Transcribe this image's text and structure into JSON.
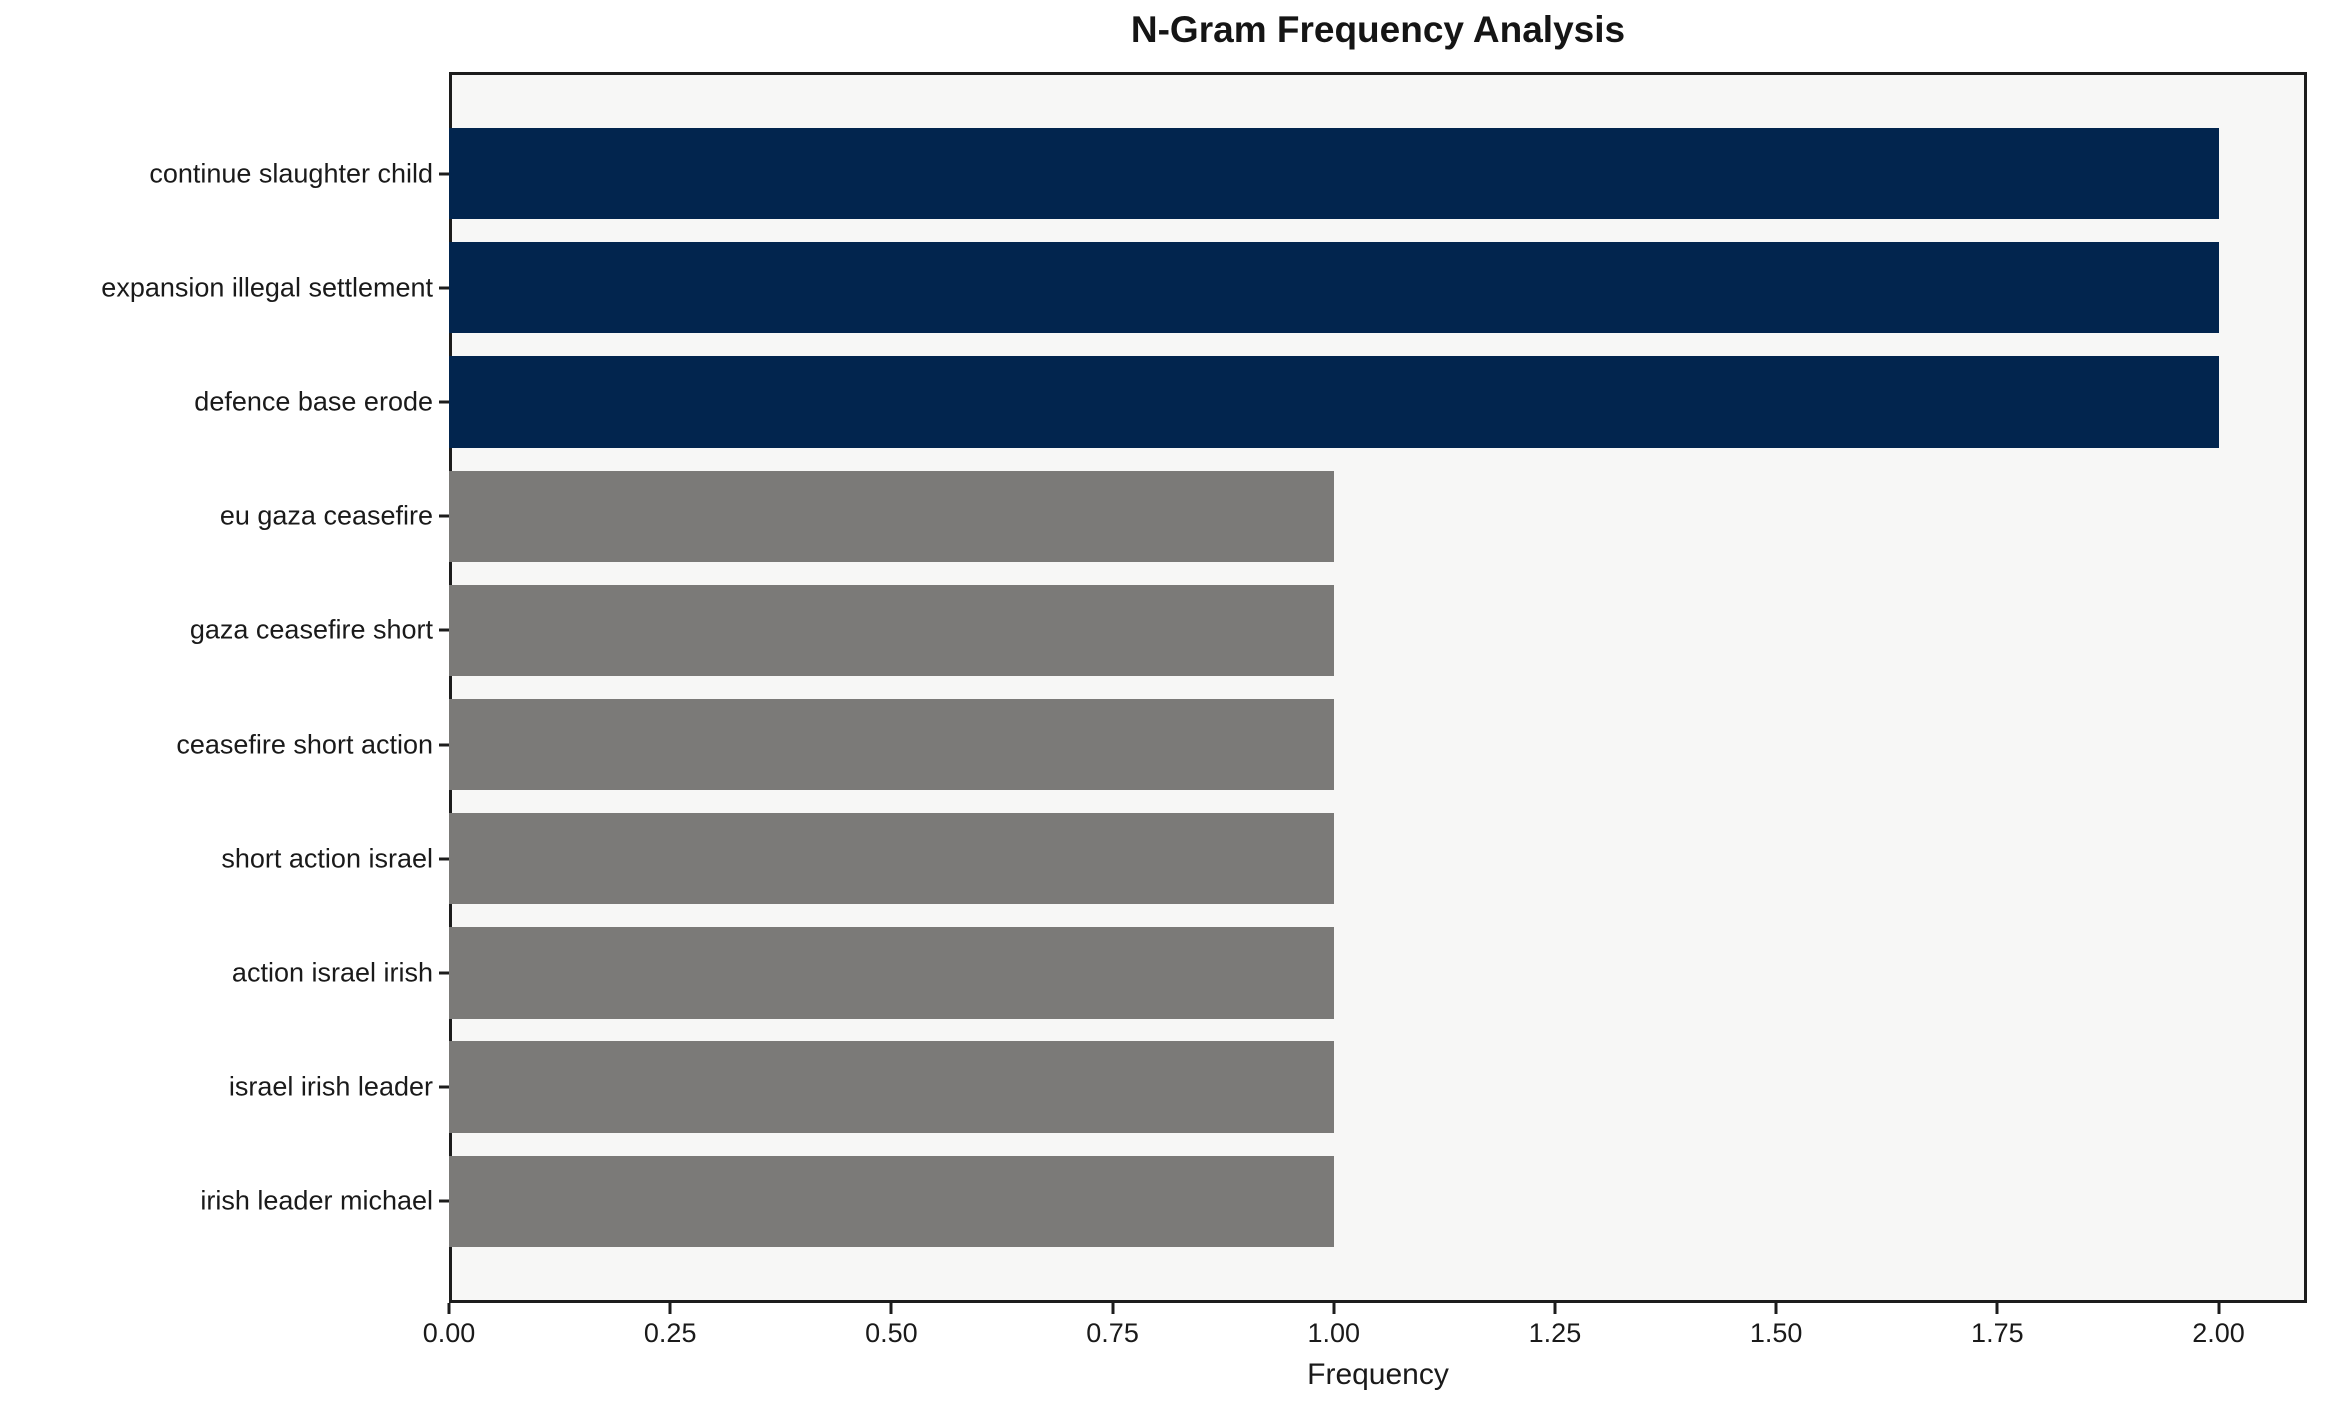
{
  "chart_data": {
    "type": "bar",
    "orientation": "horizontal",
    "title": "N-Gram Frequency Analysis",
    "xlabel": "Frequency",
    "ylabel": "",
    "categories": [
      "continue slaughter child",
      "expansion illegal settlement",
      "defence base erode",
      "eu gaza ceasefire",
      "gaza ceasefire short",
      "ceasefire short action",
      "short action israel",
      "action israel irish",
      "israel irish leader",
      "irish leader michael"
    ],
    "values": [
      2,
      2,
      2,
      1,
      1,
      1,
      1,
      1,
      1,
      1
    ],
    "bar_colors": [
      "#02254e",
      "#02254e",
      "#02254e",
      "#7b7a78",
      "#7b7a78",
      "#7b7a78",
      "#7b7a78",
      "#7b7a78",
      "#7b7a78",
      "#7b7a78"
    ],
    "highlight_color": "#02254e",
    "default_color": "#7b7a78",
    "xlim": [
      0,
      2.1
    ],
    "x_ticks": [
      0,
      0.25,
      0.5,
      0.75,
      1.0,
      1.25,
      1.5,
      1.75,
      2.0
    ],
    "x_tick_labels": [
      "0.00",
      "0.25",
      "0.50",
      "0.75",
      "1.00",
      "1.25",
      "1.50",
      "1.75",
      "2.00"
    ],
    "bar_thickness_fraction": 0.8,
    "grid": false,
    "legend": null,
    "plot_background": "#f7f7f6",
    "figure_background": "#ffffff",
    "spine_color": "#1c1c1c"
  }
}
